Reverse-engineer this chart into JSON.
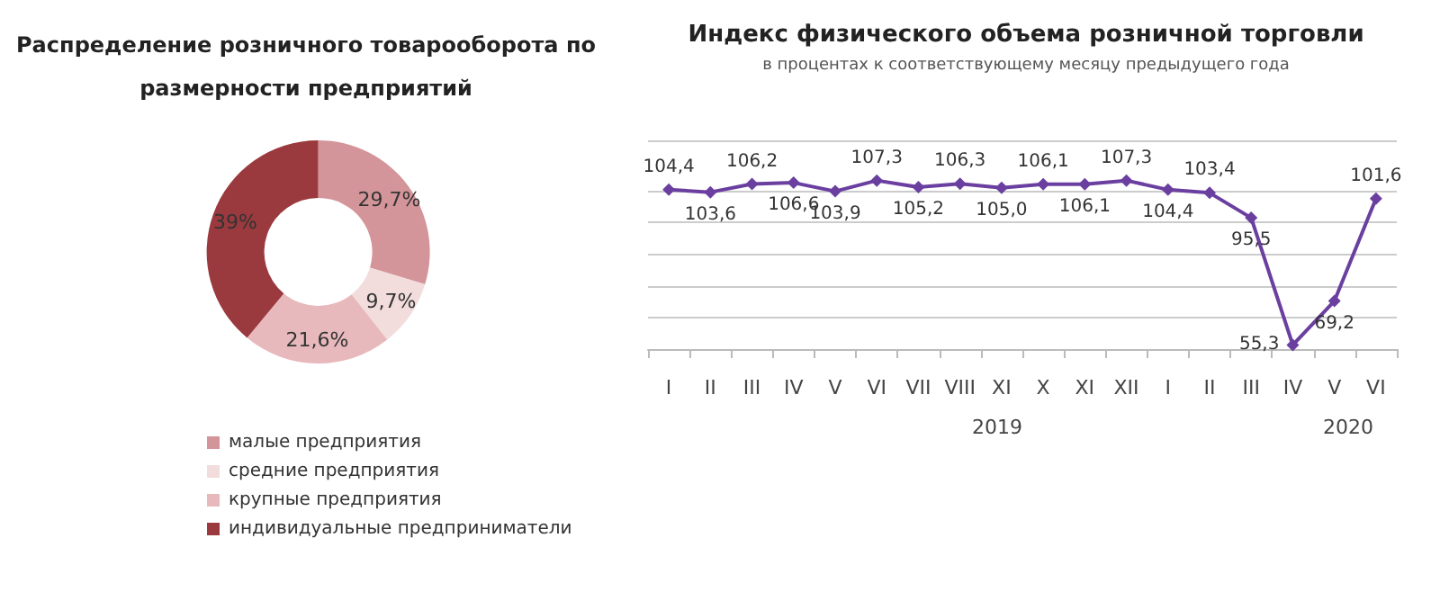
{
  "chart_data": [
    {
      "type": "donut",
      "title": "Распределение розничного товарооборота по\nразмерности предприятий",
      "categories": [
        "малые предприятия",
        "средние предприятия",
        "крупные предприятия",
        "индивидуальные предприниматели"
      ],
      "values": [
        29.7,
        9.7,
        21.6,
        39
      ],
      "colors": [
        "#d4959a",
        "#f2dcdc",
        "#e8b9bc",
        "#9b3a3e"
      ],
      "value_labels": [
        "29,7%",
        "9,7%",
        "21,6%",
        "39%"
      ],
      "legend": "bottom"
    },
    {
      "type": "line",
      "title": "Индекс физического объема розничной торговли",
      "subtitle": "в процентах к соответствующему месяцу предыдущего года",
      "categories": [
        "I",
        "II",
        "III",
        "IV",
        "V",
        "VI",
        "VII",
        "VIII",
        "XI",
        "X",
        "XI",
        "XII",
        "I",
        "II",
        "III",
        "IV",
        "V",
        "VI"
      ],
      "series": [
        {
          "color": "#6a3fa0",
          "values": [
            104.4,
            103.6,
            106.2,
            106.6,
            103.9,
            107.3,
            105.2,
            106.3,
            105.0,
            106.1,
            106.1,
            107.3,
            104.4,
            103.4,
            95.5,
            55.3,
            69.2,
            101.6
          ],
          "value_labels": [
            "104,4",
            "103,6",
            "106,2",
            "106,6",
            "103,9",
            "107,3",
            "105,2",
            "106,3",
            "105,0",
            "106,1",
            "106,1",
            "107,3",
            "104,4",
            "103,4",
            "95,5",
            "55,3",
            "69,2",
            "101,6"
          ]
        }
      ],
      "ylim": [
        54,
        120
      ],
      "yticks": [
        {
          "value": 64,
          "label": null
        },
        {
          "value": 74,
          "label": null
        },
        {
          "value": 84,
          "label": null
        },
        {
          "value": 94,
          "label": null
        },
        {
          "value": 104,
          "label": null
        },
        {
          "value": 120,
          "label": null
        }
      ],
      "tick_labels": "x",
      "grid": "y",
      "marker": "diamond",
      "line_style": "solid",
      "legend": false,
      "annotations": [
        "2019",
        "2020"
      ]
    }
  ]
}
